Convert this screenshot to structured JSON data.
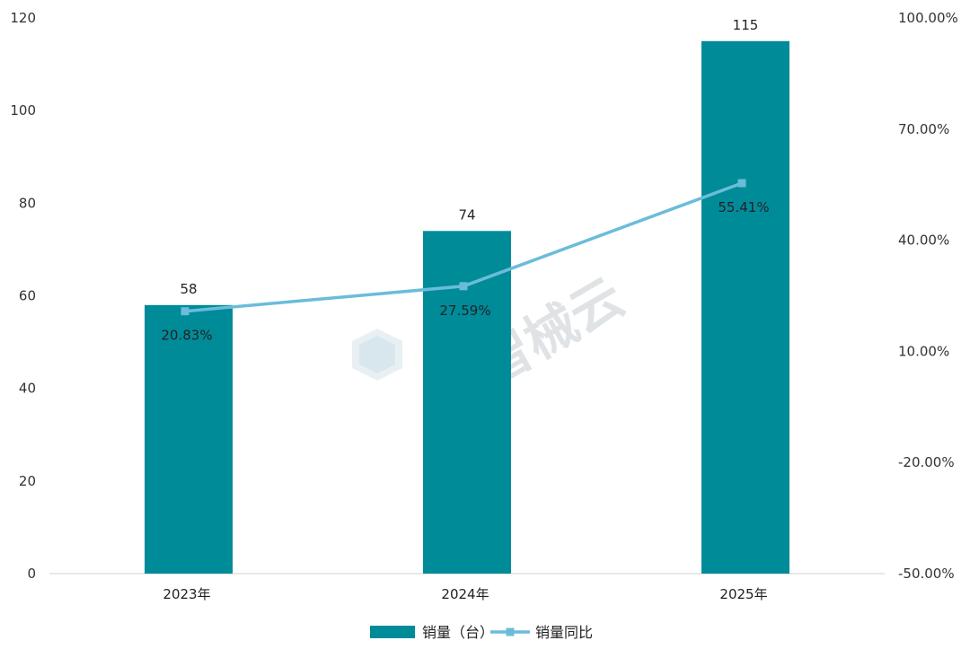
{
  "watermark": "智械云",
  "chart_data": {
    "type": "bar",
    "categories": [
      "2023年",
      "2024年",
      "2025年"
    ],
    "series": [
      {
        "name": "销量（台）",
        "type": "bar",
        "axis": "left",
        "values": [
          58,
          74,
          115
        ],
        "color": "#008B99"
      },
      {
        "name": "销量同比",
        "type": "line",
        "axis": "right",
        "values": [
          20.83,
          27.59,
          55.41
        ],
        "color": "#6BBCDA"
      }
    ],
    "left_axis": {
      "ylim": [
        0,
        120
      ],
      "ticks": [
        "0",
        "20",
        "40",
        "60",
        "80",
        "100",
        "120"
      ]
    },
    "right_axis": {
      "ylim": [
        -50,
        100
      ],
      "ticks": [
        "-50.00%",
        "-20.00%",
        "10.00%",
        "40.00%",
        "70.00%",
        "100.00%"
      ]
    },
    "bar_labels": [
      "58",
      "74",
      "115"
    ],
    "line_labels": [
      "20.83%",
      "27.59%",
      "55.41%"
    ],
    "grid": false,
    "legend": {
      "position": "bottom",
      "items": [
        "销量（台）",
        "销量同比"
      ]
    }
  }
}
